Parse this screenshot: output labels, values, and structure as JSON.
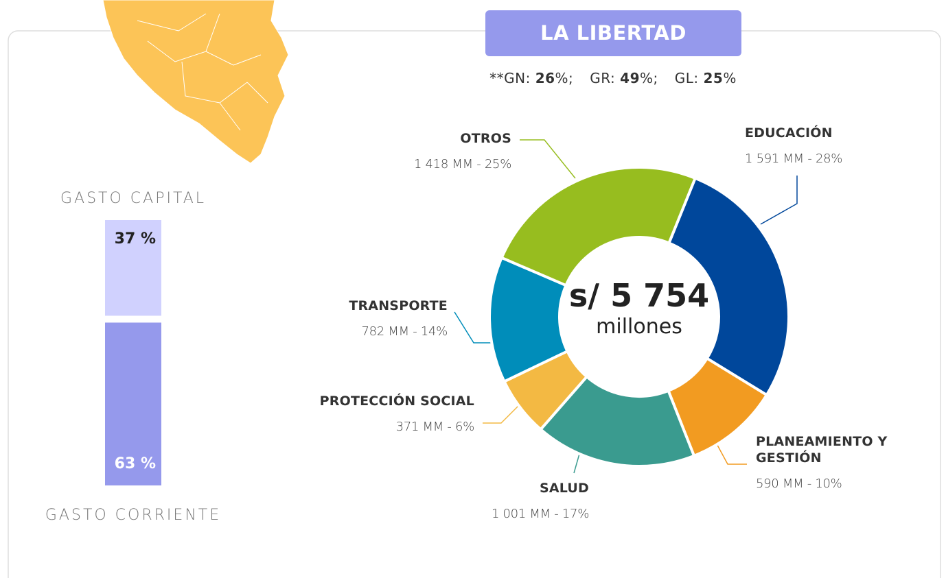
{
  "header": {
    "title": "LA LIBERTAD",
    "shares": [
      {
        "label": "**GN:",
        "value": 26,
        "suffix": "%;"
      },
      {
        "label": "GR:",
        "value": 49,
        "suffix": "%;"
      },
      {
        "label": "GL:",
        "value": 25,
        "suffix": "%"
      }
    ]
  },
  "chart_data": [
    {
      "type": "donut",
      "categories": [
        "EDUCACIÓN",
        "PLANEAMIENTO Y GESTIÓN",
        "SALUD",
        "PROTECCIÓN SOCIAL",
        "TRANSPORTE",
        "OTROS"
      ],
      "values": [
        1591,
        590,
        1001,
        371,
        782,
        1418
      ],
      "value_labels": [
        "1 591 MM - 28%",
        "590 MM - 10%",
        "1 001 MM - 17%",
        "371 MM - 6%",
        "782 MM - 14%",
        "1 418 MM - 25%"
      ],
      "colors": [
        "#00479b",
        "#f29b21",
        "#3a9b8f",
        "#f3b943",
        "#008dba",
        "#97bd1f"
      ],
      "center_label": "s/ 5 754",
      "center_sublabel": "millones"
    },
    {
      "type": "stacked-bar",
      "categories": [
        "GASTO CAPITAL",
        "GASTO CORRIENTE"
      ],
      "values": [
        37,
        63
      ],
      "value_labels": [
        "37 %",
        "63 %"
      ],
      "colors": [
        "#d0d1fe",
        "#9599ec"
      ]
    }
  ]
}
